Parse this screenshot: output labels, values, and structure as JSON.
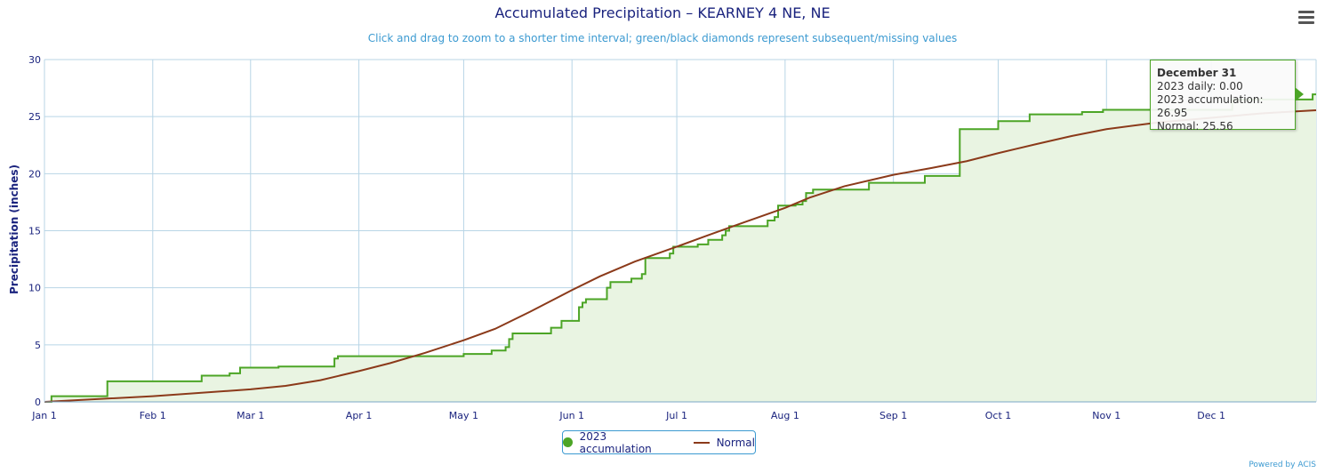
{
  "header": {
    "title": "Accumulated Precipitation – KEARNEY 4 NE, NE",
    "subtitle": "Click and drag to zoom to a shorter time interval; green/black diamonds represent subsequent/missing values"
  },
  "menu": {
    "icon": "hamburger-menu-icon"
  },
  "colors": {
    "accumulation": "#4ca526",
    "accumulation_fill": "#e9f4e2",
    "normal": "#8b3a1a",
    "grid": "#b8d5e6",
    "axis_text": "#1a237e",
    "accent": "#3c9ad1"
  },
  "chart_data": {
    "type": "line",
    "title": "Accumulated Precipitation – KEARNEY 4 NE, NE",
    "ylabel": "Precipitation (inches)",
    "xlabel": "",
    "ylim": [
      0,
      30
    ],
    "yticks": [
      0,
      5,
      10,
      15,
      20,
      25,
      30
    ],
    "x_unit": "day of year 2023",
    "xlim": [
      1,
      365
    ],
    "xticks": [
      {
        "day": 1,
        "label": "Jan 1"
      },
      {
        "day": 32,
        "label": "Feb 1"
      },
      {
        "day": 60,
        "label": "Mar 1"
      },
      {
        "day": 91,
        "label": "Apr 1"
      },
      {
        "day": 121,
        "label": "May 1"
      },
      {
        "day": 152,
        "label": "Jun 1"
      },
      {
        "day": 182,
        "label": "Jul 1"
      },
      {
        "day": 213,
        "label": "Aug 1"
      },
      {
        "day": 244,
        "label": "Sep 1"
      },
      {
        "day": 274,
        "label": "Oct 1"
      },
      {
        "day": 305,
        "label": "Nov 1"
      },
      {
        "day": 335,
        "label": "Dec 1"
      }
    ],
    "grid": true,
    "legend_position": "bottom-center",
    "series": [
      {
        "name": "2023 accumulation",
        "style": "step-area",
        "points": [
          [
            1,
            0.0
          ],
          [
            3,
            0.5
          ],
          [
            18,
            0.5
          ],
          [
            19,
            1.8
          ],
          [
            45,
            1.8
          ],
          [
            46,
            2.3
          ],
          [
            53,
            2.3
          ],
          [
            54,
            2.5
          ],
          [
            56,
            2.5
          ],
          [
            57,
            3.0
          ],
          [
            67,
            3.0
          ],
          [
            68,
            3.1
          ],
          [
            83,
            3.1
          ],
          [
            84,
            3.8
          ],
          [
            85,
            4.0
          ],
          [
            120,
            4.0
          ],
          [
            121,
            4.2
          ],
          [
            128,
            4.2
          ],
          [
            129,
            4.5
          ],
          [
            132,
            4.5
          ],
          [
            133,
            4.8
          ],
          [
            134,
            5.5
          ],
          [
            135,
            6.0
          ],
          [
            145,
            6.0
          ],
          [
            146,
            6.5
          ],
          [
            148,
            6.5
          ],
          [
            149,
            7.1
          ],
          [
            153,
            7.1
          ],
          [
            154,
            8.3
          ],
          [
            155,
            8.7
          ],
          [
            156,
            9.0
          ],
          [
            161,
            9.0
          ],
          [
            162,
            10.0
          ],
          [
            163,
            10.5
          ],
          [
            168,
            10.5
          ],
          [
            169,
            10.8
          ],
          [
            171,
            10.8
          ],
          [
            172,
            11.2
          ],
          [
            173,
            12.6
          ],
          [
            179,
            12.6
          ],
          [
            180,
            13.0
          ],
          [
            181,
            13.6
          ],
          [
            187,
            13.6
          ],
          [
            188,
            13.8
          ],
          [
            190,
            13.8
          ],
          [
            191,
            14.2
          ],
          [
            194,
            14.2
          ],
          [
            195,
            14.6
          ],
          [
            196,
            15.0
          ],
          [
            197,
            15.4
          ],
          [
            207,
            15.4
          ],
          [
            208,
            15.9
          ],
          [
            210,
            16.2
          ],
          [
            211,
            17.2
          ],
          [
            216,
            17.3
          ],
          [
            218,
            17.6
          ],
          [
            219,
            18.3
          ],
          [
            221,
            18.6
          ],
          [
            236,
            18.6
          ],
          [
            237,
            19.2
          ],
          [
            252,
            19.2
          ],
          [
            253,
            19.8
          ],
          [
            262,
            19.8
          ],
          [
            263,
            23.9
          ],
          [
            273,
            23.9
          ],
          [
            274,
            24.6
          ],
          [
            282,
            24.6
          ],
          [
            283,
            25.2
          ],
          [
            297,
            25.2
          ],
          [
            298,
            25.4
          ],
          [
            303,
            25.4
          ],
          [
            304,
            25.6
          ],
          [
            340,
            25.6
          ],
          [
            341,
            26.5
          ],
          [
            363,
            26.5
          ],
          [
            364,
            26.95
          ],
          [
            365,
            26.95
          ]
        ]
      },
      {
        "name": "Normal",
        "style": "line",
        "points": [
          [
            1,
            0.0
          ],
          [
            32,
            0.5
          ],
          [
            60,
            1.1
          ],
          [
            70,
            1.4
          ],
          [
            80,
            1.9
          ],
          [
            91,
            2.7
          ],
          [
            100,
            3.4
          ],
          [
            110,
            4.3
          ],
          [
            121,
            5.4
          ],
          [
            130,
            6.4
          ],
          [
            140,
            7.9
          ],
          [
            152,
            9.8
          ],
          [
            160,
            11.0
          ],
          [
            170,
            12.3
          ],
          [
            182,
            13.6
          ],
          [
            190,
            14.5
          ],
          [
            200,
            15.6
          ],
          [
            213,
            17.0
          ],
          [
            220,
            17.9
          ],
          [
            230,
            18.9
          ],
          [
            244,
            19.9
          ],
          [
            255,
            20.5
          ],
          [
            265,
            21.1
          ],
          [
            274,
            21.8
          ],
          [
            285,
            22.6
          ],
          [
            295,
            23.3
          ],
          [
            305,
            23.9
          ],
          [
            320,
            24.5
          ],
          [
            335,
            24.9
          ],
          [
            350,
            25.3
          ],
          [
            365,
            25.56
          ]
        ]
      }
    ]
  },
  "legend": {
    "items": [
      {
        "label": "2023 accumulation"
      },
      {
        "label": "Normal"
      }
    ]
  },
  "tooltip": {
    "date": "December 31",
    "daily": "2023 daily: 0.00",
    "accumulation": "2023 accumulation: 26.95",
    "normal": "Normal: 25.56"
  },
  "credit": "Powered by ACIS"
}
